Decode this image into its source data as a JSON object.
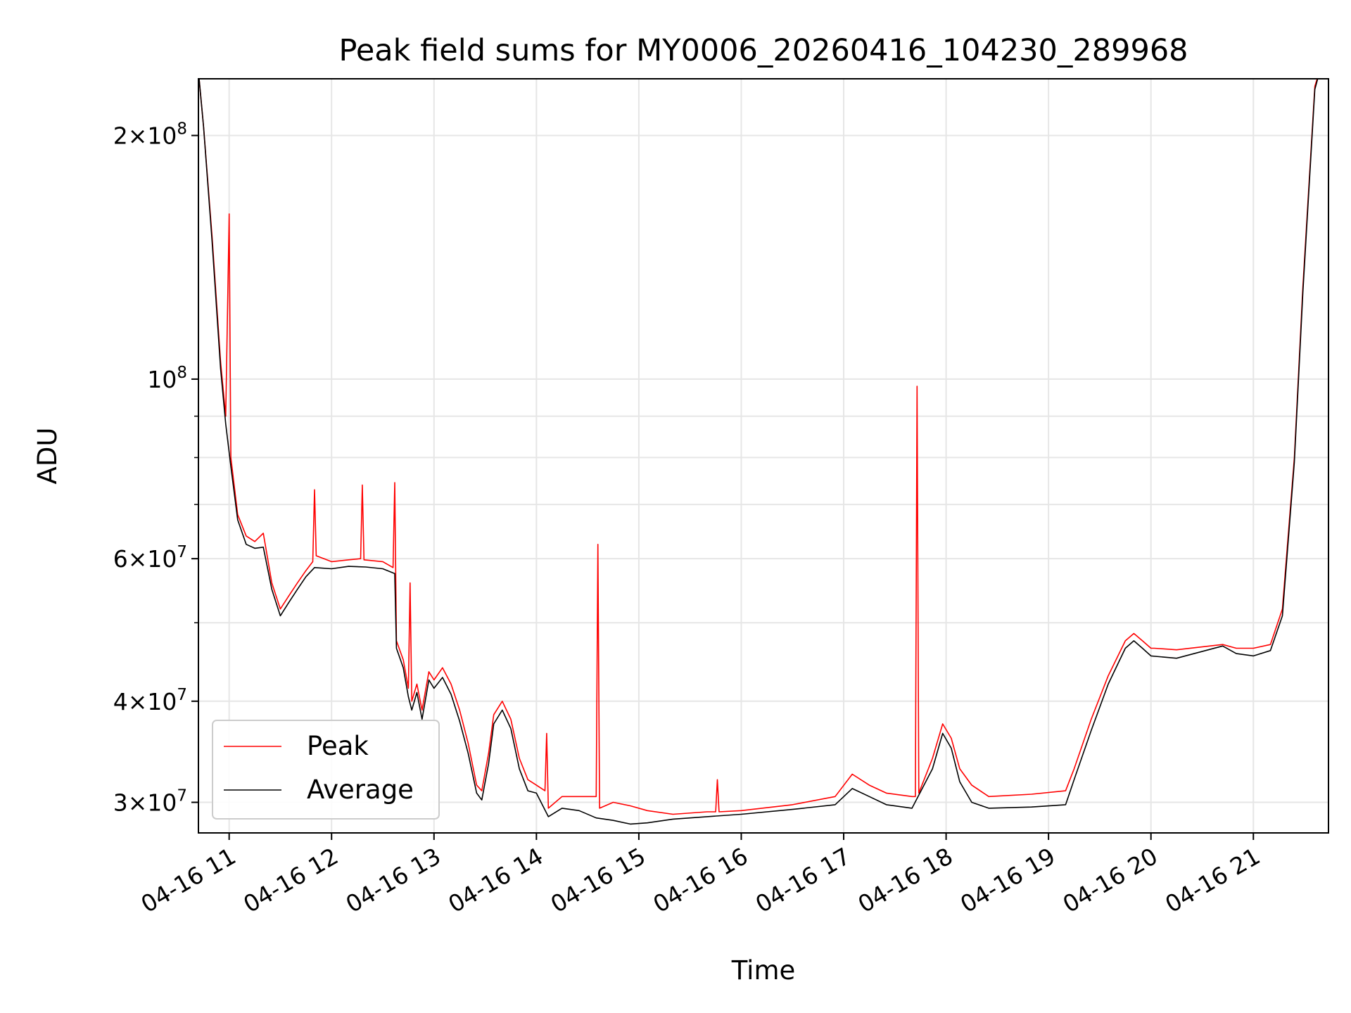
{
  "chart_data": {
    "type": "line",
    "title": "Peak field sums for MY0006_20260416_104230_289968",
    "xlabel": "Time",
    "ylabel": "ADU",
    "yscale": "log",
    "grid": true,
    "legend_position": "lower-left",
    "x_ticks": [
      "04-16 11",
      "04-16 12",
      "04-16 13",
      "04-16 14",
      "04-16 15",
      "04-16 16",
      "04-16 17",
      "04-16 18",
      "04-16 19",
      "04-16 20",
      "04-16 21"
    ],
    "xlim": [
      "2026-04-16 10:42",
      "2026-04-16 21:44"
    ],
    "ylim": [
      27500000,
      235000000
    ],
    "y_ticks": [
      {
        "value": 30000000,
        "mantissa": "3",
        "exponent": "7"
      },
      {
        "value": 40000000,
        "mantissa": "4",
        "exponent": "7"
      },
      {
        "value": 60000000,
        "mantissa": "6",
        "exponent": "7"
      },
      {
        "value": 100000000,
        "mantissa": "",
        "exponent": "8"
      },
      {
        "value": 200000000,
        "mantissa": "2",
        "exponent": "8"
      }
    ],
    "y_minor_ticks": [
      50000000,
      70000000,
      80000000,
      90000000
    ],
    "series": [
      {
        "name": "Peak",
        "color": "#ff0000",
        "points": [
          [
            "2026-04-16 10:42",
            240000000
          ],
          [
            "2026-04-16 10:45",
            205000000
          ],
          [
            "2026-04-16 10:50",
            150000000
          ],
          [
            "2026-04-16 10:55",
            105000000
          ],
          [
            "2026-04-16 10:58",
            90000000
          ],
          [
            "2026-04-16 11:00",
            160000000
          ],
          [
            "2026-04-16 11:01",
            80000000
          ],
          [
            "2026-04-16 11:05",
            68000000
          ],
          [
            "2026-04-16 11:10",
            64000000
          ],
          [
            "2026-04-16 11:15",
            63000000
          ],
          [
            "2026-04-16 11:20",
            64500000
          ],
          [
            "2026-04-16 11:25",
            56000000
          ],
          [
            "2026-04-16 11:30",
            52000000
          ],
          [
            "2026-04-16 11:35",
            54000000
          ],
          [
            "2026-04-16 11:40",
            56000000
          ],
          [
            "2026-04-16 11:45",
            58000000
          ],
          [
            "2026-04-16 11:49",
            59500000
          ],
          [
            "2026-04-16 11:50",
            73000000
          ],
          [
            "2026-04-16 11:51",
            60500000
          ],
          [
            "2026-04-16 12:00",
            59500000
          ],
          [
            "2026-04-16 12:10",
            59800000
          ],
          [
            "2026-04-16 12:17",
            60000000
          ],
          [
            "2026-04-16 12:18",
            74000000
          ],
          [
            "2026-04-16 12:19",
            59800000
          ],
          [
            "2026-04-16 12:30",
            59500000
          ],
          [
            "2026-04-16 12:36",
            58500000
          ],
          [
            "2026-04-16 12:37",
            74500000
          ],
          [
            "2026-04-16 12:38",
            47500000
          ],
          [
            "2026-04-16 12:42",
            45000000
          ],
          [
            "2026-04-16 12:45",
            41500000
          ],
          [
            "2026-04-16 12:46",
            56000000
          ],
          [
            "2026-04-16 12:47",
            40000000
          ],
          [
            "2026-04-16 12:50",
            42000000
          ],
          [
            "2026-04-16 12:53",
            39000000
          ],
          [
            "2026-04-16 12:57",
            43500000
          ],
          [
            "2026-04-16 13:00",
            42500000
          ],
          [
            "2026-04-16 13:05",
            44000000
          ],
          [
            "2026-04-16 13:10",
            42000000
          ],
          [
            "2026-04-16 13:15",
            39000000
          ],
          [
            "2026-04-16 13:20",
            35500000
          ],
          [
            "2026-04-16 13:25",
            31500000
          ],
          [
            "2026-04-16 13:28",
            31000000
          ],
          [
            "2026-04-16 13:32",
            34500000
          ],
          [
            "2026-04-16 13:35",
            38500000
          ],
          [
            "2026-04-16 13:40",
            40000000
          ],
          [
            "2026-04-16 13:45",
            38000000
          ],
          [
            "2026-04-16 13:50",
            34000000
          ],
          [
            "2026-04-16 13:55",
            32000000
          ],
          [
            "2026-04-16 14:00",
            31500000
          ],
          [
            "2026-04-16 14:05",
            31000000
          ],
          [
            "2026-04-16 14:06",
            36500000
          ],
          [
            "2026-04-16 14:07",
            29500000
          ],
          [
            "2026-04-16 14:15",
            30500000
          ],
          [
            "2026-04-16 14:25",
            30500000
          ],
          [
            "2026-04-16 14:35",
            30500000
          ],
          [
            "2026-04-16 14:36",
            62500000
          ],
          [
            "2026-04-16 14:37",
            29500000
          ],
          [
            "2026-04-16 14:45",
            30000000
          ],
          [
            "2026-04-16 14:55",
            29700000
          ],
          [
            "2026-04-16 15:05",
            29300000
          ],
          [
            "2026-04-16 15:20",
            29000000
          ],
          [
            "2026-04-16 15:40",
            29200000
          ],
          [
            "2026-04-16 15:45",
            29200000
          ],
          [
            "2026-04-16 15:46",
            32000000
          ],
          [
            "2026-04-16 15:47",
            29200000
          ],
          [
            "2026-04-16 16:00",
            29300000
          ],
          [
            "2026-04-16 16:30",
            29800000
          ],
          [
            "2026-04-16 16:55",
            30500000
          ],
          [
            "2026-04-16 17:05",
            32500000
          ],
          [
            "2026-04-16 17:15",
            31500000
          ],
          [
            "2026-04-16 17:25",
            30800000
          ],
          [
            "2026-04-16 17:40",
            30500000
          ],
          [
            "2026-04-16 17:42",
            30500000
          ],
          [
            "2026-04-16 17:43",
            98000000
          ],
          [
            "2026-04-16 17:44",
            30800000
          ],
          [
            "2026-04-16 17:52",
            34000000
          ],
          [
            "2026-04-16 17:58",
            37500000
          ],
          [
            "2026-04-16 18:03",
            36000000
          ],
          [
            "2026-04-16 18:08",
            33000000
          ],
          [
            "2026-04-16 18:15",
            31500000
          ],
          [
            "2026-04-16 18:25",
            30500000
          ],
          [
            "2026-04-16 18:50",
            30700000
          ],
          [
            "2026-04-16 19:10",
            31000000
          ],
          [
            "2026-04-16 19:15",
            33000000
          ],
          [
            "2026-04-16 19:25",
            38000000
          ],
          [
            "2026-04-16 19:35",
            43000000
          ],
          [
            "2026-04-16 19:45",
            47500000
          ],
          [
            "2026-04-16 19:50",
            48500000
          ],
          [
            "2026-04-16 19:55",
            47500000
          ],
          [
            "2026-04-16 20:00",
            46500000
          ],
          [
            "2026-04-16 20:02",
            46500000
          ],
          [
            "2026-04-16 20:15",
            46300000
          ],
          [
            "2026-04-16 20:42",
            47000000
          ],
          [
            "2026-04-16 20:50",
            46500000
          ],
          [
            "2026-04-16 21:00",
            46500000
          ],
          [
            "2026-04-16 21:10",
            47000000
          ],
          [
            "2026-04-16 21:17",
            52000000
          ],
          [
            "2026-04-16 21:24",
            80000000
          ],
          [
            "2026-04-16 21:29",
            130000000
          ],
          [
            "2026-04-16 21:33",
            180000000
          ],
          [
            "2026-04-16 21:36",
            230000000
          ],
          [
            "2026-04-16 21:40",
            245000000
          ]
        ]
      },
      {
        "name": "Average",
        "color": "#000000",
        "points": [
          [
            "2026-04-16 10:42",
            240000000
          ],
          [
            "2026-04-16 10:45",
            205000000
          ],
          [
            "2026-04-16 10:50",
            148000000
          ],
          [
            "2026-04-16 10:55",
            103000000
          ],
          [
            "2026-04-16 10:58",
            88000000
          ],
          [
            "2026-04-16 11:01",
            78000000
          ],
          [
            "2026-04-16 11:05",
            67000000
          ],
          [
            "2026-04-16 11:10",
            62500000
          ],
          [
            "2026-04-16 11:15",
            61800000
          ],
          [
            "2026-04-16 11:20",
            62000000
          ],
          [
            "2026-04-16 11:25",
            55000000
          ],
          [
            "2026-04-16 11:30",
            51000000
          ],
          [
            "2026-04-16 11:35",
            53000000
          ],
          [
            "2026-04-16 11:40",
            55000000
          ],
          [
            "2026-04-16 11:45",
            57000000
          ],
          [
            "2026-04-16 11:50",
            58500000
          ],
          [
            "2026-04-16 12:00",
            58300000
          ],
          [
            "2026-04-16 12:10",
            58700000
          ],
          [
            "2026-04-16 12:20",
            58600000
          ],
          [
            "2026-04-16 12:30",
            58300000
          ],
          [
            "2026-04-16 12:37",
            57500000
          ],
          [
            "2026-04-16 12:38",
            46500000
          ],
          [
            "2026-04-16 12:42",
            44000000
          ],
          [
            "2026-04-16 12:45",
            40500000
          ],
          [
            "2026-04-16 12:47",
            39000000
          ],
          [
            "2026-04-16 12:50",
            41000000
          ],
          [
            "2026-04-16 12:53",
            38000000
          ],
          [
            "2026-04-16 12:57",
            42500000
          ],
          [
            "2026-04-16 13:00",
            41500000
          ],
          [
            "2026-04-16 13:05",
            42800000
          ],
          [
            "2026-04-16 13:10",
            40800000
          ],
          [
            "2026-04-16 13:15",
            37800000
          ],
          [
            "2026-04-16 13:20",
            34500000
          ],
          [
            "2026-04-16 13:25",
            30800000
          ],
          [
            "2026-04-16 13:28",
            30200000
          ],
          [
            "2026-04-16 13:32",
            33500000
          ],
          [
            "2026-04-16 13:35",
            37500000
          ],
          [
            "2026-04-16 13:40",
            39000000
          ],
          [
            "2026-04-16 13:45",
            37000000
          ],
          [
            "2026-04-16 13:50",
            33000000
          ],
          [
            "2026-04-16 13:55",
            31000000
          ],
          [
            "2026-04-16 14:00",
            30800000
          ],
          [
            "2026-04-16 14:07",
            28800000
          ],
          [
            "2026-04-16 14:15",
            29500000
          ],
          [
            "2026-04-16 14:25",
            29300000
          ],
          [
            "2026-04-16 14:35",
            28700000
          ],
          [
            "2026-04-16 14:45",
            28500000
          ],
          [
            "2026-04-16 14:55",
            28200000
          ],
          [
            "2026-04-16 15:05",
            28300000
          ],
          [
            "2026-04-16 15:20",
            28600000
          ],
          [
            "2026-04-16 15:40",
            28800000
          ],
          [
            "2026-04-16 16:00",
            29000000
          ],
          [
            "2026-04-16 16:30",
            29400000
          ],
          [
            "2026-04-16 16:55",
            29800000
          ],
          [
            "2026-04-16 17:05",
            31200000
          ],
          [
            "2026-04-16 17:15",
            30500000
          ],
          [
            "2026-04-16 17:25",
            29800000
          ],
          [
            "2026-04-16 17:40",
            29500000
          ],
          [
            "2026-04-16 17:52",
            33000000
          ],
          [
            "2026-04-16 17:58",
            36500000
          ],
          [
            "2026-04-16 18:03",
            35000000
          ],
          [
            "2026-04-16 18:08",
            31800000
          ],
          [
            "2026-04-16 18:15",
            30000000
          ],
          [
            "2026-04-16 18:25",
            29500000
          ],
          [
            "2026-04-16 18:50",
            29600000
          ],
          [
            "2026-04-16 19:10",
            29800000
          ],
          [
            "2026-04-16 19:15",
            32000000
          ],
          [
            "2026-04-16 19:25",
            36800000
          ],
          [
            "2026-04-16 19:35",
            42000000
          ],
          [
            "2026-04-16 19:45",
            46500000
          ],
          [
            "2026-04-16 19:50",
            47500000
          ],
          [
            "2026-04-16 19:55",
            46500000
          ],
          [
            "2026-04-16 20:00",
            45500000
          ],
          [
            "2026-04-16 20:15",
            45200000
          ],
          [
            "2026-04-16 20:42",
            46800000
          ],
          [
            "2026-04-16 20:50",
            45800000
          ],
          [
            "2026-04-16 21:00",
            45500000
          ],
          [
            "2026-04-16 21:10",
            46200000
          ],
          [
            "2026-04-16 21:17",
            51000000
          ],
          [
            "2026-04-16 21:24",
            79000000
          ],
          [
            "2026-04-16 21:29",
            128000000
          ],
          [
            "2026-04-16 21:33",
            178000000
          ],
          [
            "2026-04-16 21:36",
            228000000
          ],
          [
            "2026-04-16 21:40",
            245000000
          ]
        ]
      }
    ]
  }
}
